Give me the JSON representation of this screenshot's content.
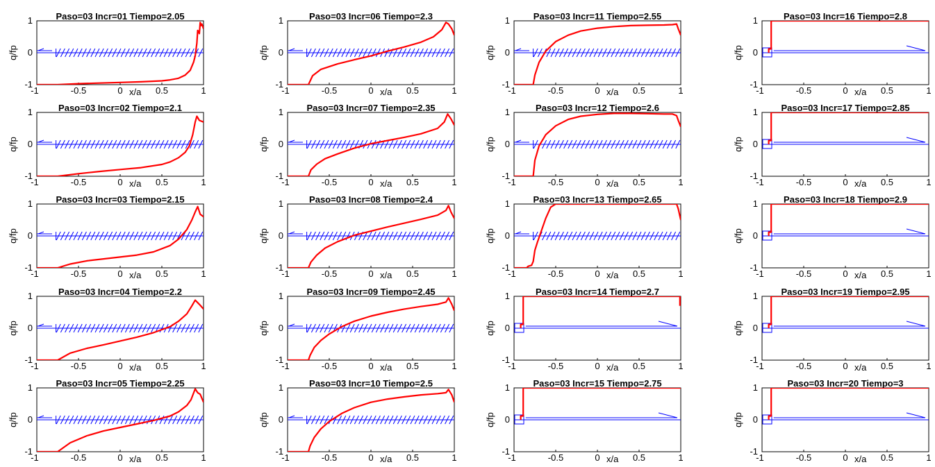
{
  "chart_data": {
    "type": "line",
    "common": {
      "xlabel": "x/a",
      "ylabel": "q/fp",
      "xlim": [
        -1,
        1
      ],
      "ylim": [
        -1,
        1
      ],
      "xticks": [
        "-1",
        "-0.5",
        "0",
        "0.5",
        "1"
      ],
      "yticks": [
        "-1",
        "0",
        "1"
      ],
      "grid": false,
      "curve_color": "#ff0000",
      "mesh_color": "#0000ff"
    },
    "panels": [
      {
        "title": "Paso=03  Incr=01 Tiempo=2.05",
        "state": "creep",
        "curve": {
          "x": [
            -1,
            -0.75,
            -0.5,
            -0.25,
            0,
            0.25,
            0.5,
            0.6,
            0.7,
            0.78,
            0.84,
            0.88,
            0.9,
            0.92,
            0.93,
            0.95,
            0.96,
            0.97,
            0.98,
            1.0
          ],
          "y": [
            -1,
            -1,
            -0.97,
            -0.95,
            -0.93,
            -0.91,
            -0.88,
            -0.85,
            -0.8,
            -0.7,
            -0.55,
            -0.3,
            -0.1,
            0.3,
            0.7,
            0.6,
            0.95,
            0.85,
            0.9,
            0.75
          ]
        }
      },
      {
        "title": "Paso=03  Incr=02 Tiempo=2.1",
        "state": "creep",
        "curve": {
          "x": [
            -1,
            -0.75,
            -0.5,
            -0.25,
            0,
            0.25,
            0.5,
            0.6,
            0.7,
            0.78,
            0.83,
            0.87,
            0.9,
            0.92,
            0.95,
            1.0
          ],
          "y": [
            -1,
            -1,
            -0.92,
            -0.85,
            -0.79,
            -0.73,
            -0.63,
            -0.55,
            -0.42,
            -0.25,
            -0.05,
            0.3,
            0.7,
            0.88,
            0.75,
            0.7
          ]
        }
      },
      {
        "title": "Paso=03  Incr=03 Tiempo=2.15",
        "state": "creep",
        "curve": {
          "x": [
            -1,
            -0.75,
            -0.6,
            -0.4,
            -0.2,
            0,
            0.2,
            0.4,
            0.6,
            0.7,
            0.8,
            0.86,
            0.9,
            0.93,
            0.96,
            1.0
          ],
          "y": [
            -1,
            -1,
            -0.88,
            -0.78,
            -0.72,
            -0.66,
            -0.6,
            -0.5,
            -0.3,
            -0.1,
            0.2,
            0.5,
            0.75,
            0.92,
            0.68,
            0.6
          ]
        }
      },
      {
        "title": "Paso=03  Incr=04 Tiempo=2.2",
        "state": "creep",
        "curve": {
          "x": [
            -1,
            -0.75,
            -0.6,
            -0.4,
            -0.2,
            0,
            0.2,
            0.4,
            0.6,
            0.7,
            0.8,
            0.86,
            0.9,
            0.93,
            0.96,
            1.0
          ],
          "y": [
            -1,
            -1,
            -0.78,
            -0.63,
            -0.52,
            -0.4,
            -0.28,
            -0.14,
            0.05,
            0.22,
            0.45,
            0.7,
            0.88,
            0.8,
            0.72,
            0.6
          ]
        }
      },
      {
        "title": "Paso=03  Incr=05 Tiempo=2.25",
        "state": "creep",
        "curve": {
          "x": [
            -1,
            -0.75,
            -0.6,
            -0.4,
            -0.2,
            0,
            0.2,
            0.4,
            0.6,
            0.7,
            0.8,
            0.85,
            0.9,
            0.93,
            0.96,
            1.0
          ],
          "y": [
            -1,
            -1,
            -0.72,
            -0.5,
            -0.35,
            -0.24,
            -0.13,
            -0.02,
            0.12,
            0.25,
            0.45,
            0.63,
            0.97,
            0.85,
            0.8,
            0.55
          ]
        }
      },
      {
        "title": "Paso=03  Incr=06 Tiempo=2.3",
        "state": "creep",
        "curve": {
          "x": [
            -1,
            -0.75,
            -0.7,
            -0.6,
            -0.4,
            -0.2,
            0,
            0.2,
            0.4,
            0.6,
            0.75,
            0.85,
            0.9,
            0.93,
            0.97,
            1.0
          ],
          "y": [
            -1,
            -1,
            -0.72,
            -0.52,
            -0.35,
            -0.22,
            -0.1,
            0.05,
            0.18,
            0.33,
            0.5,
            0.72,
            0.95,
            0.9,
            0.75,
            0.55
          ]
        }
      },
      {
        "title": "Paso=03  Incr=07 Tiempo=2.35",
        "state": "creep",
        "curve": {
          "x": [
            -1,
            -0.75,
            -0.72,
            -0.65,
            -0.55,
            -0.4,
            -0.2,
            0,
            0.2,
            0.4,
            0.6,
            0.8,
            0.88,
            0.92,
            0.96,
            1.0
          ],
          "y": [
            -1,
            -1,
            -0.8,
            -0.62,
            -0.45,
            -0.3,
            -0.12,
            0.02,
            0.12,
            0.22,
            0.33,
            0.5,
            0.7,
            0.95,
            0.8,
            0.6
          ]
        }
      },
      {
        "title": "Paso=03  Incr=08 Tiempo=2.4",
        "state": "creep",
        "curve": {
          "x": [
            -1,
            -0.75,
            -0.72,
            -0.65,
            -0.55,
            -0.4,
            -0.2,
            0,
            0.2,
            0.4,
            0.6,
            0.8,
            0.9,
            0.93,
            0.96,
            1.0
          ],
          "y": [
            -1,
            -1,
            -0.82,
            -0.6,
            -0.38,
            -0.18,
            0.02,
            0.15,
            0.28,
            0.4,
            0.52,
            0.65,
            0.8,
            0.95,
            0.75,
            0.55
          ]
        }
      },
      {
        "title": "Paso=03  Incr=09 Tiempo=2.45",
        "state": "creep",
        "curve": {
          "x": [
            -1,
            -0.75,
            -0.73,
            -0.68,
            -0.6,
            -0.5,
            -0.35,
            -0.2,
            0,
            0.2,
            0.4,
            0.6,
            0.8,
            0.9,
            0.93,
            0.97,
            1.0
          ],
          "y": [
            -1,
            -1,
            -0.85,
            -0.6,
            -0.38,
            -0.18,
            0.05,
            0.22,
            0.38,
            0.5,
            0.6,
            0.68,
            0.75,
            0.82,
            0.95,
            0.75,
            0.55
          ]
        }
      },
      {
        "title": "Paso=03  Incr=10 Tiempo=2.5",
        "state": "creep",
        "curve": {
          "x": [
            -1,
            -0.75,
            -0.73,
            -0.68,
            -0.6,
            -0.5,
            -0.35,
            -0.2,
            0,
            0.2,
            0.4,
            0.6,
            0.8,
            0.9,
            0.93,
            0.97,
            1.0
          ],
          "y": [
            -1,
            -1,
            -0.82,
            -0.55,
            -0.28,
            -0.05,
            0.2,
            0.38,
            0.55,
            0.65,
            0.72,
            0.78,
            0.82,
            0.85,
            0.95,
            0.78,
            0.55
          ]
        }
      },
      {
        "title": "Paso=03  Incr=11 Tiempo=2.55",
        "state": "creep",
        "curve": {
          "x": [
            -1,
            -0.77,
            -0.75,
            -0.7,
            -0.62,
            -0.5,
            -0.35,
            -0.2,
            0,
            0.2,
            0.4,
            0.6,
            0.8,
            0.9,
            0.95,
            0.97,
            1.0
          ],
          "y": [
            -1,
            -1,
            -0.7,
            -0.3,
            0.05,
            0.35,
            0.55,
            0.68,
            0.77,
            0.82,
            0.85,
            0.86,
            0.87,
            0.88,
            0.9,
            0.75,
            0.55
          ]
        }
      },
      {
        "title": "Paso=03  Incr=12 Tiempo=2.6",
        "state": "creep",
        "curve": {
          "x": [
            -1,
            -0.77,
            -0.75,
            -0.7,
            -0.62,
            -0.5,
            -0.35,
            -0.2,
            0,
            0.2,
            0.4,
            0.6,
            0.8,
            0.9,
            0.95,
            0.97,
            1.0
          ],
          "y": [
            -1,
            -1,
            -0.5,
            -0.05,
            0.3,
            0.58,
            0.78,
            0.88,
            0.94,
            0.97,
            0.97,
            0.96,
            0.95,
            0.95,
            0.9,
            0.75,
            0.55
          ]
        }
      },
      {
        "title": "Paso=03  Incr=13 Tiempo=2.65",
        "state": "creep",
        "curve": {
          "x": [
            -1,
            -0.85,
            -0.83,
            -0.79,
            -0.77,
            -0.75,
            -0.72,
            -0.68,
            -0.62,
            -0.56,
            -0.5,
            0.95,
            0.97,
            1.0
          ],
          "y": [
            -1,
            -1,
            -0.95,
            -0.92,
            -0.8,
            -0.45,
            -0.2,
            0.1,
            0.55,
            0.9,
            1,
            1,
            0.85,
            0.5
          ]
        }
      },
      {
        "title": "Paso=03  Incr=14 Tiempo=2.7",
        "state": "slip",
        "curve": {
          "x": [
            -0.92,
            -0.92,
            -0.89,
            -0.89,
            0.99,
            0.99
          ],
          "y": [
            0,
            0.12,
            0.12,
            1,
            1,
            0.7
          ]
        }
      },
      {
        "title": "Paso=03  Incr=15 Tiempo=2.75",
        "state": "slip",
        "curve": {
          "x": [
            -0.92,
            -0.92,
            -0.89,
            -0.89,
            1.0
          ],
          "y": [
            0,
            0.12,
            0.12,
            1,
            1
          ]
        }
      },
      {
        "title": "Paso=03  Incr=16 Tiempo=2.8",
        "state": "slip",
        "curve": {
          "x": [
            -0.92,
            -0.92,
            -0.89,
            -0.89,
            1.0
          ],
          "y": [
            0,
            0.12,
            0.12,
            1,
            1
          ]
        }
      },
      {
        "title": "Paso=03  Incr=17 Tiempo=2.85",
        "state": "slip",
        "curve": {
          "x": [
            -0.92,
            -0.92,
            -0.89,
            -0.89,
            1.0
          ],
          "y": [
            0,
            0.12,
            0.12,
            1,
            1
          ]
        }
      },
      {
        "title": "Paso=03  Incr=18 Tiempo=2.9",
        "state": "slip",
        "curve": {
          "x": [
            -0.92,
            -0.92,
            -0.89,
            -0.89,
            1.0
          ],
          "y": [
            0,
            0.12,
            0.12,
            1,
            1
          ]
        }
      },
      {
        "title": "Paso=03  Incr=19 Tiempo=2.95",
        "state": "slip",
        "curve": {
          "x": [
            -0.92,
            -0.92,
            -0.89,
            -0.89,
            1.0
          ],
          "y": [
            0,
            0.12,
            0.12,
            1,
            1
          ]
        }
      },
      {
        "title": "Paso=03  Incr=20 Tiempo=3",
        "state": "slip",
        "curve": {
          "x": [
            -0.92,
            -0.92,
            -0.89,
            -0.89,
            1.0
          ],
          "y": [
            0,
            0.12,
            0.12,
            1,
            1
          ]
        }
      }
    ]
  }
}
